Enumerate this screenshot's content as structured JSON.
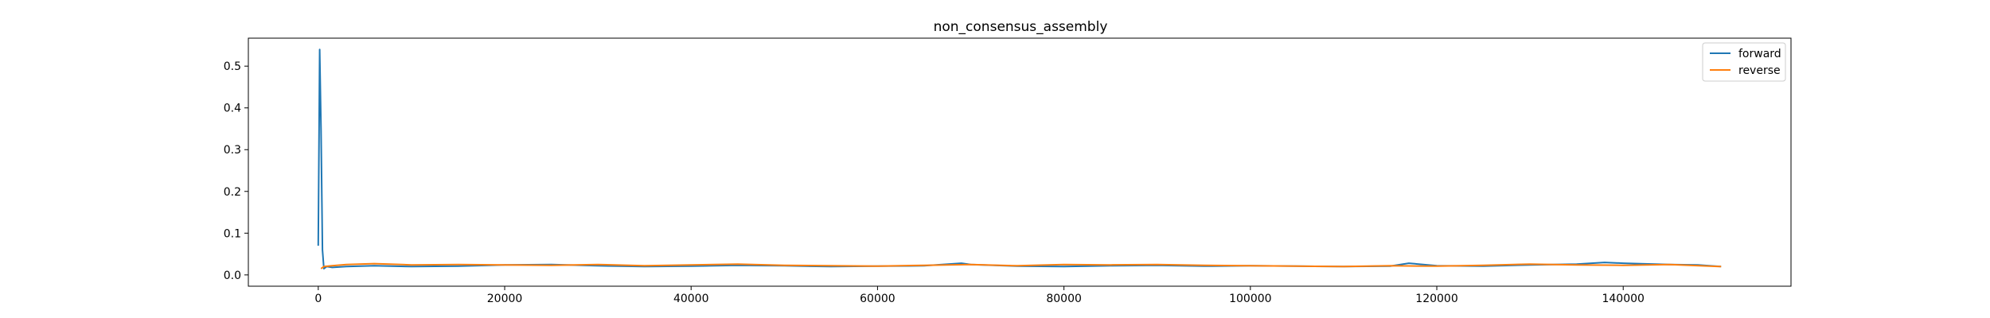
{
  "chart_data": {
    "type": "line",
    "title": "non_consensus_assembly",
    "xlabel": "",
    "ylabel": "",
    "xlim": [
      -7500,
      158000
    ],
    "ylim": [
      -0.027,
      0.567
    ],
    "xticks": [
      0,
      20000,
      40000,
      60000,
      80000,
      100000,
      120000,
      140000
    ],
    "yticks": [
      0.0,
      0.1,
      0.2,
      0.3,
      0.4,
      0.5
    ],
    "grid": false,
    "legend_position": "top-right",
    "series": [
      {
        "name": "forward",
        "color": "#1f77b4",
        "x": [
          0,
          150,
          300,
          450,
          600,
          900,
          1500,
          3000,
          6000,
          10000,
          15000,
          20000,
          25000,
          30000,
          35000,
          40000,
          45000,
          50000,
          55000,
          60000,
          65000,
          69000,
          70000,
          75000,
          80000,
          85000,
          90000,
          95000,
          100000,
          105000,
          110000,
          115000,
          117000,
          120000,
          125000,
          130000,
          135000,
          138000,
          140000,
          145000,
          148000,
          150500
        ],
        "y": [
          0.07,
          0.54,
          0.35,
          0.06,
          0.015,
          0.02,
          0.018,
          0.02,
          0.022,
          0.02,
          0.021,
          0.024,
          0.025,
          0.022,
          0.02,
          0.021,
          0.023,
          0.022,
          0.02,
          0.021,
          0.022,
          0.028,
          0.025,
          0.021,
          0.02,
          0.022,
          0.023,
          0.021,
          0.022,
          0.021,
          0.02,
          0.021,
          0.028,
          0.022,
          0.021,
          0.024,
          0.026,
          0.03,
          0.028,
          0.025,
          0.024,
          0.02
        ]
      },
      {
        "name": "reverse",
        "color": "#ff7f0e",
        "x": [
          300,
          600,
          1500,
          3000,
          6000,
          10000,
          15000,
          20000,
          25000,
          30000,
          35000,
          40000,
          45000,
          50000,
          55000,
          60000,
          65000,
          70000,
          75000,
          80000,
          85000,
          90000,
          95000,
          100000,
          105000,
          110000,
          115000,
          120000,
          125000,
          130000,
          135000,
          140000,
          145000,
          150500
        ],
        "y": [
          0.015,
          0.02,
          0.022,
          0.025,
          0.027,
          0.024,
          0.025,
          0.024,
          0.023,
          0.025,
          0.022,
          0.024,
          0.026,
          0.023,
          0.022,
          0.021,
          0.023,
          0.025,
          0.022,
          0.025,
          0.024,
          0.025,
          0.023,
          0.022,
          0.021,
          0.02,
          0.022,
          0.021,
          0.023,
          0.026,
          0.024,
          0.023,
          0.025,
          0.02
        ]
      }
    ]
  }
}
